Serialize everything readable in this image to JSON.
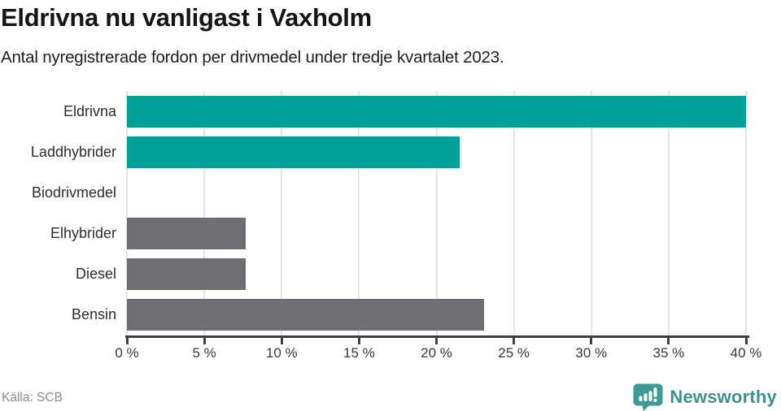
{
  "header": {
    "title": "Eldrivna nu vanligast i Vaxholm",
    "subtitle": "Antal nyregistrerade fordon per drivmedel under tredje kvartalet 2023."
  },
  "chart_data": {
    "type": "bar",
    "orientation": "horizontal",
    "title": "Eldrivna nu vanligast i Vaxholm",
    "subtitle": "Antal nyregistrerade fordon per drivmedel under tredje kvartalet 2023.",
    "categories": [
      "Eldrivna",
      "Laddhybrider",
      "Biodrivmedel",
      "Elhybrider",
      "Diesel",
      "Bensin"
    ],
    "values": [
      40,
      21.5,
      0,
      7.7,
      7.7,
      23.1
    ],
    "unit": "%",
    "xlim": [
      0,
      40
    ],
    "x_ticks": [
      0,
      5,
      10,
      15,
      20,
      25,
      30,
      35,
      40
    ],
    "x_tick_labels": [
      "0 %",
      "5 %",
      "10 %",
      "15 %",
      "20 %",
      "25 %",
      "30 %",
      "35 %",
      "40 %"
    ],
    "bar_colors": [
      "#00a099",
      "#00a099",
      "#00a099",
      "#6d6d72",
      "#6d6d72",
      "#6d6d72"
    ],
    "grid": "vertical",
    "legend": "none"
  },
  "footer": {
    "source": "Källa: SCB",
    "brand": "Newsworthy"
  },
  "colors": {
    "accent_teal": "#00a099",
    "muted_gray": "#6d6d72",
    "gridline": "#e4e4e4",
    "axis": "#3f3f3f",
    "logo_teal": "#3d9a94",
    "wordmark_teal": "#3f938d"
  },
  "icons": {
    "brand_icon": "newsworthy-speech-bubble-chart-icon"
  }
}
